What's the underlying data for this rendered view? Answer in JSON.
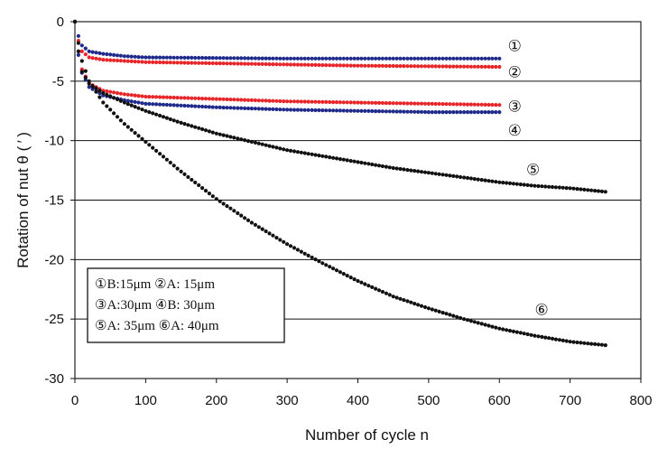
{
  "chart_data": {
    "type": "scatter",
    "title": "",
    "xlabel": "Number of cycle   n",
    "ylabel": "Rotation of nut  θ ( ′ )",
    "xlim": [
      0,
      800
    ],
    "ylim": [
      -30,
      0
    ],
    "xticks": [
      0,
      100,
      200,
      300,
      400,
      500,
      600,
      700,
      800
    ],
    "yticks": [
      0,
      -5,
      -10,
      -15,
      -20,
      -25,
      -30
    ],
    "grid": "horizontal",
    "legend_box": {
      "placement": "bottom-left",
      "lines": [
        "①B:15μm  ②A: 15μm",
        "③A:30μm  ④B: 30μm",
        "⑤A: 35μm  ⑥A: 40μm"
      ]
    },
    "series": [
      {
        "marker": "①",
        "color": "#1f2a8a",
        "x_end": 600,
        "points": [
          [
            0,
            0
          ],
          [
            5,
            -1.2
          ],
          [
            10,
            -2.0
          ],
          [
            20,
            -2.5
          ],
          [
            40,
            -2.7
          ],
          [
            70,
            -2.9
          ],
          [
            100,
            -3.0
          ],
          [
            200,
            -3.05
          ],
          [
            300,
            -3.1
          ],
          [
            400,
            -3.1
          ],
          [
            500,
            -3.1
          ],
          [
            600,
            -3.1
          ]
        ]
      },
      {
        "marker": "②",
        "color": "#e8262a",
        "x_end": 600,
        "points": [
          [
            0,
            0
          ],
          [
            5,
            -1.6
          ],
          [
            10,
            -2.5
          ],
          [
            20,
            -3.0
          ],
          [
            40,
            -3.2
          ],
          [
            70,
            -3.3
          ],
          [
            100,
            -3.4
          ],
          [
            200,
            -3.5
          ],
          [
            300,
            -3.6
          ],
          [
            400,
            -3.7
          ],
          [
            500,
            -3.75
          ],
          [
            600,
            -3.8
          ]
        ]
      },
      {
        "marker": "③",
        "color": "#e8262a",
        "x_end": 600,
        "points": [
          [
            0,
            0
          ],
          [
            5,
            -2.5
          ],
          [
            10,
            -4.0
          ],
          [
            20,
            -5.2
          ],
          [
            40,
            -5.8
          ],
          [
            70,
            -6.1
          ],
          [
            100,
            -6.3
          ],
          [
            200,
            -6.5
          ],
          [
            300,
            -6.7
          ],
          [
            400,
            -6.8
          ],
          [
            500,
            -6.9
          ],
          [
            600,
            -7.0
          ]
        ]
      },
      {
        "marker": "④",
        "color": "#1f2a8a",
        "x_end": 600,
        "points": [
          [
            0,
            0
          ],
          [
            5,
            -2.8
          ],
          [
            10,
            -4.3
          ],
          [
            20,
            -5.5
          ],
          [
            40,
            -6.2
          ],
          [
            70,
            -6.6
          ],
          [
            100,
            -6.9
          ],
          [
            200,
            -7.2
          ],
          [
            300,
            -7.4
          ],
          [
            400,
            -7.5
          ],
          [
            500,
            -7.6
          ],
          [
            600,
            -7.6
          ]
        ]
      },
      {
        "marker": "⑤",
        "color": "#111111",
        "x_end": 750,
        "points": [
          [
            0,
            0
          ],
          [
            5,
            -2.5
          ],
          [
            10,
            -4.2
          ],
          [
            20,
            -5.2
          ],
          [
            40,
            -6.0
          ],
          [
            70,
            -6.8
          ],
          [
            100,
            -7.5
          ],
          [
            150,
            -8.5
          ],
          [
            200,
            -9.4
          ],
          [
            250,
            -10.1
          ],
          [
            300,
            -10.8
          ],
          [
            350,
            -11.3
          ],
          [
            400,
            -11.8
          ],
          [
            450,
            -12.3
          ],
          [
            500,
            -12.7
          ],
          [
            550,
            -13.1
          ],
          [
            600,
            -13.5
          ],
          [
            650,
            -13.8
          ],
          [
            700,
            -14.0
          ],
          [
            750,
            -14.3
          ]
        ]
      },
      {
        "marker": "⑥",
        "color": "#111111",
        "x_end": 750,
        "points": [
          [
            0,
            0
          ],
          [
            5,
            -1.8
          ],
          [
            10,
            -3.3
          ],
          [
            20,
            -5.0
          ],
          [
            40,
            -6.8
          ],
          [
            70,
            -8.6
          ],
          [
            100,
            -10.1
          ],
          [
            150,
            -12.6
          ],
          [
            200,
            -14.9
          ],
          [
            250,
            -16.9
          ],
          [
            300,
            -18.7
          ],
          [
            350,
            -20.3
          ],
          [
            400,
            -21.8
          ],
          [
            450,
            -23.1
          ],
          [
            500,
            -24.1
          ],
          [
            550,
            -25.0
          ],
          [
            600,
            -25.8
          ],
          [
            650,
            -26.4
          ],
          [
            700,
            -26.9
          ],
          [
            750,
            -27.2
          ]
        ]
      }
    ]
  }
}
